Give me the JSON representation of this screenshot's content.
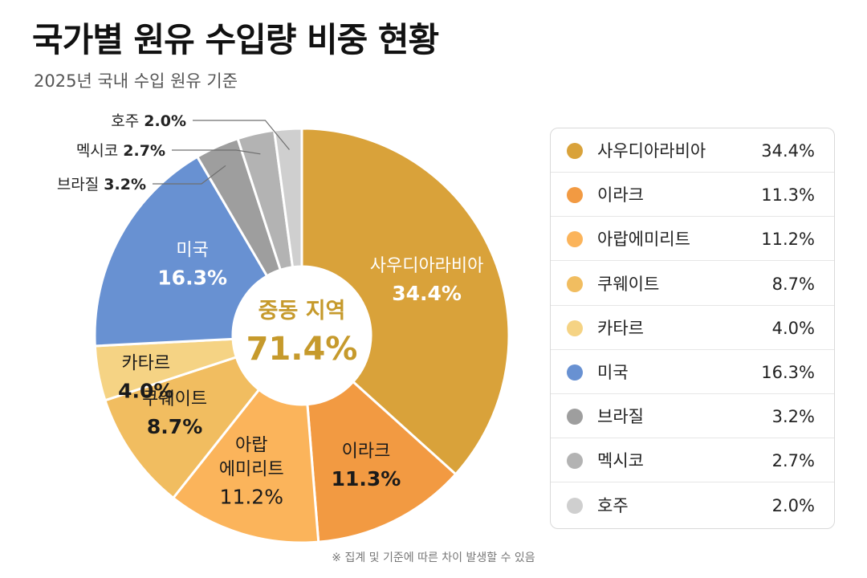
{
  "title": "국가별 원유 수입량 비중 현황",
  "subtitle": "2025년 국내 수입 원유 기준",
  "footnote": "※ 집계 및 기준에 따른 차이 발생할 수 있음",
  "center": {
    "label": "중동 지역",
    "value": "71.4%"
  },
  "colors": {
    "center_text": "#c69a2c"
  },
  "chart_data": {
    "type": "pie",
    "variant": "donut",
    "title": "국가별 원유 수입량 비중 현황",
    "unit": "%",
    "slices": [
      {
        "name": "사우디아라비아",
        "slice_label": [
          "사우디아라비아"
        ],
        "value": 34.4,
        "value_text": "34.4%",
        "color": "#d9a23a",
        "label_color": "#ffffff",
        "value_bold": true
      },
      {
        "name": "이라크",
        "slice_label": [
          "이라크"
        ],
        "value": 11.3,
        "value_text": "11.3%",
        "color": "#f29a42",
        "label_color": "#1a1a1a",
        "value_bold": true
      },
      {
        "name": "아랍에미리트",
        "slice_label": [
          "아랍",
          "에미리트"
        ],
        "value": 11.2,
        "value_text": "11.2%",
        "color": "#fbb45b",
        "label_color": "#1a1a1a",
        "value_bold": false
      },
      {
        "name": "쿠웨이트",
        "slice_label": [
          "쿠웨이트"
        ],
        "value": 8.7,
        "value_text": "8.7%",
        "color": "#f1bd60",
        "label_color": "#1a1a1a",
        "value_bold": true
      },
      {
        "name": "카타르",
        "slice_label": [
          "카타르"
        ],
        "value": 4.0,
        "value_text": "4.0%",
        "color": "#f5d384",
        "label_color": "#1a1a1a",
        "value_bold": true
      },
      {
        "name": "미국",
        "slice_label": [
          "미국"
        ],
        "value": 16.3,
        "value_text": "16.3%",
        "color": "#6891d2",
        "label_color": "#ffffff",
        "value_bold": true
      },
      {
        "name": "브라질",
        "slice_label": [],
        "value": 3.2,
        "value_text": "3.2%",
        "color": "#9e9e9e",
        "label_color": "#1a1a1a",
        "value_bold": false,
        "callout": "브라질 3.2%"
      },
      {
        "name": "멕시코",
        "slice_label": [],
        "value": 2.7,
        "value_text": "2.7%",
        "color": "#b3b3b3",
        "label_color": "#1a1a1a",
        "value_bold": false,
        "callout": "멕시코 2.7%"
      },
      {
        "name": "호주",
        "slice_label": [],
        "value": 2.0,
        "value_text": "2.0%",
        "color": "#cfcfcf",
        "label_color": "#1a1a1a",
        "value_bold": false,
        "callout": "호주 2.0%"
      }
    ],
    "legend": {
      "placement": "right"
    }
  }
}
